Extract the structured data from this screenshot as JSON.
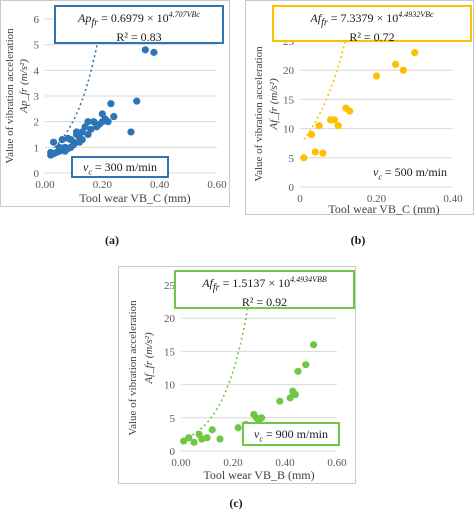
{
  "chart_data": [
    {
      "type": "scatter",
      "label": "(a)",
      "color": "#2E75B6",
      "ylabel": "Value of vibration acceleration",
      "ylabel2": "Ap_fr (m/s²)",
      "xlabel": "Tool wear VB_C (mm)",
      "xlim": [
        0,
        0.6
      ],
      "xticks": [
        "0.00",
        "0.20",
        "0.40",
        "0.60"
      ],
      "ylim": [
        0,
        6
      ],
      "yticks": [
        "0",
        "1",
        "2",
        "3",
        "4",
        "5",
        "6"
      ],
      "equation": "Ap_fr = 0.6979 × 10^(4.707VBc)",
      "equation_main": "Ap",
      "equation_sub": "fr",
      "equation_rhs": " = 0.6979 × 10",
      "equation_exp": "4.707VBc",
      "r2": "R² = 0.83",
      "speed": "= 300 m/min",
      "trend": {
        "a": 0.6979,
        "b": 4.707
      },
      "x": [
        0.02,
        0.02,
        0.03,
        0.03,
        0.04,
        0.05,
        0.05,
        0.06,
        0.06,
        0.07,
        0.07,
        0.08,
        0.08,
        0.09,
        0.09,
        0.1,
        0.1,
        0.11,
        0.11,
        0.12,
        0.12,
        0.13,
        0.13,
        0.14,
        0.15,
        0.15,
        0.16,
        0.17,
        0.18,
        0.19,
        0.2,
        0.2,
        0.21,
        0.22,
        0.23,
        0.24,
        0.3,
        0.32,
        0.35,
        0.38
      ],
      "y": [
        0.7,
        0.8,
        1.2,
        0.75,
        0.8,
        0.85,
        1.0,
        0.9,
        1.3,
        0.85,
        1.0,
        0.95,
        1.35,
        1.0,
        1.3,
        1.1,
        1.2,
        1.5,
        1.6,
        1.2,
        1.4,
        1.3,
        1.6,
        1.8,
        1.5,
        2.0,
        1.7,
        2.0,
        1.8,
        1.9,
        2.3,
        2.0,
        2.1,
        2.0,
        2.7,
        2.2,
        1.6,
        2.8,
        4.8,
        4.7
      ]
    },
    {
      "type": "scatter",
      "label": "(b)",
      "color": "#FFC000",
      "ylabel": "Value of vibration acceleration",
      "ylabel2": "Af_fr (m/s²)",
      "xlabel": "Tool wear VB_C (mm)",
      "xlim": [
        0,
        0.4
      ],
      "xticks": [
        "0",
        "0.20",
        "0.40"
      ],
      "ylim": [
        0,
        25
      ],
      "yticks": [
        "0",
        "5",
        "10",
        "15",
        "20",
        "25"
      ],
      "equation": "Af_fr = 7.3379 × 10^(4.4932VBc)",
      "equation_main": "Af",
      "equation_sub": "fr",
      "equation_rhs": " = 7.3379 × 10",
      "equation_exp": "4.4932VBc",
      "r2": "R² = 0.72",
      "speed": "= 500 m/min",
      "trend": {
        "a": 7.3379,
        "b": 4.4932
      },
      "x": [
        0.01,
        0.03,
        0.04,
        0.05,
        0.06,
        0.08,
        0.09,
        0.1,
        0.12,
        0.13,
        0.2,
        0.25,
        0.27,
        0.3
      ],
      "y": [
        5.0,
        9.0,
        6.0,
        10.5,
        5.8,
        11.5,
        11.5,
        10.5,
        13.5,
        13.0,
        19.0,
        21.0,
        20.0,
        23.0
      ]
    },
    {
      "type": "scatter",
      "label": "(c)",
      "color": "#70C744",
      "ylabel": "Value of vibration acceleration",
      "ylabel2": "Af_fr (m/s²)",
      "xlabel": "Tool wear VB_B (mm)",
      "xlim": [
        0,
        0.6
      ],
      "xticks": [
        "0.00",
        "0.20",
        "0.40",
        "0.60"
      ],
      "ylim": [
        0,
        25
      ],
      "yticks": [
        "0",
        "5",
        "10",
        "15",
        "20",
        "25"
      ],
      "equation": "Af_fr = 1.5137 × 10^(4.4934VBB)",
      "equation_main": "Af",
      "equation_sub": "fr",
      "equation_rhs": " = 1.5137 × 10",
      "equation_exp": "4.4934VBB",
      "r2": "R² = 0.92",
      "speed": "= 900 m/min",
      "trend": {
        "a": 1.5137,
        "b": 4.4934
      },
      "x": [
        0.01,
        0.03,
        0.05,
        0.07,
        0.08,
        0.1,
        0.12,
        0.15,
        0.22,
        0.25,
        0.28,
        0.29,
        0.3,
        0.31,
        0.38,
        0.42,
        0.43,
        0.44,
        0.45,
        0.48,
        0.51
      ],
      "y": [
        1.5,
        2.0,
        1.3,
        2.5,
        1.8,
        2.0,
        3.2,
        1.8,
        3.5,
        4.0,
        5.5,
        5.0,
        4.5,
        5.0,
        7.5,
        8.0,
        9.0,
        8.5,
        12.0,
        13.0,
        16.0
      ]
    }
  ],
  "panels": [
    {
      "caption": "(a)"
    },
    {
      "caption": "(b)"
    },
    {
      "caption": "(c)"
    }
  ]
}
